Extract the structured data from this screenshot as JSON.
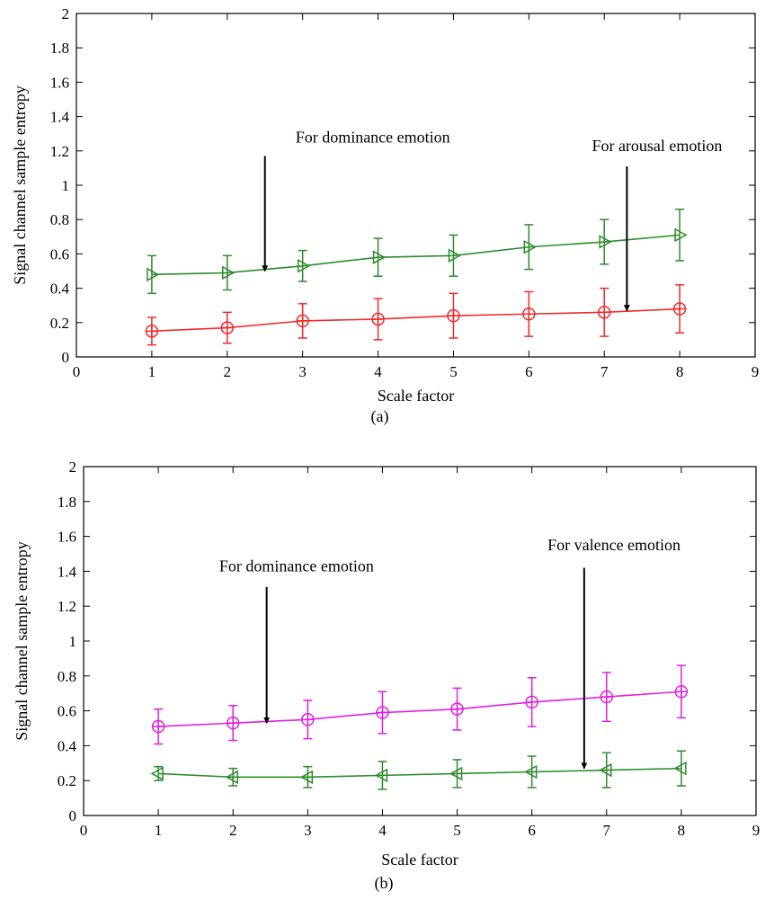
{
  "chart_data": [
    {
      "type": "line",
      "panel_caption": "(a)",
      "xlabel": "Scale factor",
      "ylabel": "Signal channel sample entropy",
      "xlim": [
        0,
        9
      ],
      "ylim": [
        0,
        2
      ],
      "xticks": [
        0,
        1,
        2,
        3,
        4,
        5,
        6,
        7,
        8,
        9
      ],
      "yticks": [
        0,
        0.2,
        0.4,
        0.6,
        0.8,
        1,
        1.2,
        1.4,
        1.6,
        1.8,
        2
      ],
      "ytick_labels": [
        "0",
        "0.2",
        "0.4",
        "0.6",
        "0.8",
        "1",
        "1.2",
        "1.4",
        "1.6",
        "1.8",
        "2"
      ],
      "grid": false,
      "series": [
        {
          "color": "#2e8b2e",
          "marker": "triangle-right",
          "x": [
            1,
            2,
            3,
            4,
            5,
            6,
            7,
            8
          ],
          "y": [
            0.48,
            0.49,
            0.53,
            0.58,
            0.59,
            0.64,
            0.67,
            0.71
          ],
          "err": [
            0.11,
            0.1,
            0.09,
            0.11,
            0.12,
            0.13,
            0.13,
            0.15
          ]
        },
        {
          "color": "#ee2b2b",
          "marker": "circle-cross",
          "x": [
            1,
            2,
            3,
            4,
            5,
            6,
            7,
            8
          ],
          "y": [
            0.15,
            0.17,
            0.21,
            0.22,
            0.24,
            0.25,
            0.26,
            0.28
          ],
          "err": [
            0.08,
            0.09,
            0.1,
            0.12,
            0.13,
            0.13,
            0.14,
            0.14
          ]
        }
      ],
      "annotations": [
        {
          "text": "For dominance emotion",
          "text_x": 3.93,
          "text_y": 1.25,
          "arrow_from": [
            2.5,
            1.17
          ],
          "arrow_to": [
            2.5,
            0.5
          ]
        },
        {
          "text": "For arousal emotion",
          "text_x": 7.7,
          "text_y": 1.2,
          "arrow_from": [
            7.3,
            1.11
          ],
          "arrow_to": [
            7.3,
            0.27
          ]
        }
      ]
    },
    {
      "type": "line",
      "panel_caption": "(b)",
      "xlabel": "Scale factor",
      "ylabel": "Signal channel sample entropy",
      "xlim": [
        0,
        9
      ],
      "ylim": [
        0,
        2
      ],
      "xticks": [
        0,
        1,
        2,
        3,
        4,
        5,
        6,
        7,
        8,
        9
      ],
      "yticks": [
        0,
        0.2,
        0.4,
        0.6,
        0.8,
        1,
        1.2,
        1.4,
        1.6,
        1.8,
        2
      ],
      "ytick_labels": [
        "0",
        "0.2",
        "0.4",
        "0.6",
        "0.8",
        "1",
        "1.2",
        "1.4",
        "1.6",
        "1.8",
        "2"
      ],
      "grid": false,
      "series": [
        {
          "color": "#e020e0",
          "marker": "circle-cross",
          "x": [
            1,
            2,
            3,
            4,
            5,
            6,
            7,
            8
          ],
          "y": [
            0.51,
            0.53,
            0.55,
            0.59,
            0.61,
            0.65,
            0.68,
            0.71
          ],
          "err": [
            0.1,
            0.1,
            0.11,
            0.12,
            0.12,
            0.14,
            0.14,
            0.15
          ]
        },
        {
          "color": "#2e8b2e",
          "marker": "triangle-left",
          "x": [
            1,
            2,
            3,
            4,
            5,
            6,
            7,
            8
          ],
          "y": [
            0.24,
            0.22,
            0.22,
            0.23,
            0.24,
            0.25,
            0.26,
            0.27
          ],
          "err": [
            0.04,
            0.05,
            0.06,
            0.08,
            0.08,
            0.09,
            0.1,
            0.1
          ]
        }
      ],
      "annotations": [
        {
          "text": "For dominance emotion",
          "text_x": 2.85,
          "text_y": 1.4,
          "arrow_from": [
            2.45,
            1.31
          ],
          "arrow_to": [
            2.45,
            0.53
          ]
        },
        {
          "text": "For valence emotion",
          "text_x": 7.1,
          "text_y": 1.52,
          "arrow_from": [
            6.7,
            1.42
          ],
          "arrow_to": [
            6.7,
            0.27
          ]
        }
      ]
    }
  ]
}
